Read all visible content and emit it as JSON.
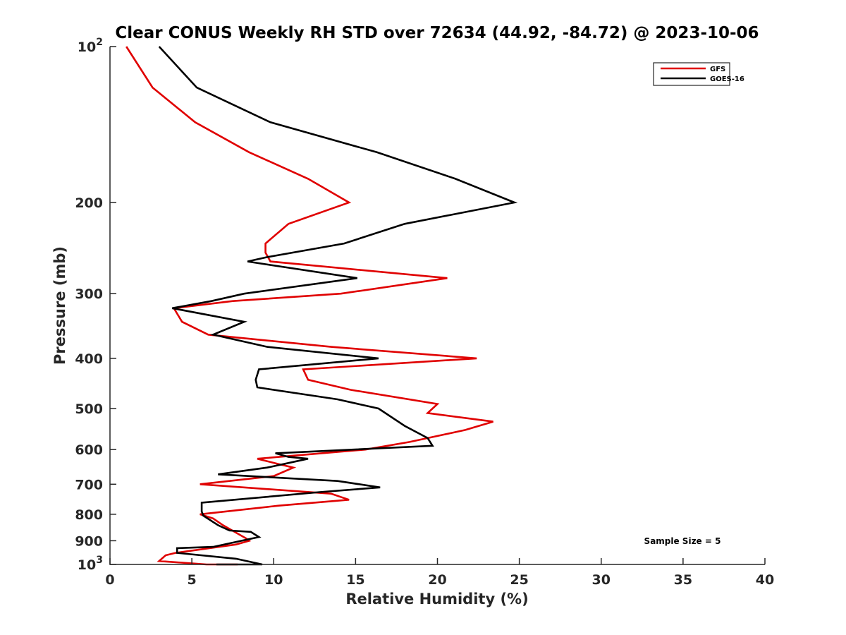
{
  "chart_data": {
    "type": "line",
    "title": "Clear CONUS Weekly RH STD over 72634 (44.92, -84.72) @ 2023-10-06",
    "xlabel": "Relative Humidity (%)",
    "ylabel": "Pressure (mb)",
    "xlim": [
      0,
      40
    ],
    "ylim": [
      100,
      1000
    ],
    "yscale": "log",
    "yreversed": true,
    "grid": false,
    "legend_position": "top-right",
    "x_ticks": [
      0,
      5,
      10,
      15,
      20,
      25,
      30,
      35,
      40
    ],
    "x_tick_labels": [
      "0",
      "5",
      "10",
      "15",
      "20",
      "25",
      "30",
      "35",
      "40"
    ],
    "y_ticks": [
      100,
      200,
      300,
      400,
      500,
      600,
      700,
      800,
      900,
      1000
    ],
    "y_tick_labels": [
      {
        "base": "10",
        "exp": "2"
      },
      {
        "base": "200",
        "exp": ""
      },
      {
        "base": "300",
        "exp": ""
      },
      {
        "base": "400",
        "exp": ""
      },
      {
        "base": "500",
        "exp": ""
      },
      {
        "base": "600",
        "exp": ""
      },
      {
        "base": "700",
        "exp": ""
      },
      {
        "base": "800",
        "exp": ""
      },
      {
        "base": "900",
        "exp": ""
      },
      {
        "base": "10",
        "exp": "3"
      }
    ],
    "annotation": "Sample Size = 5",
    "series": [
      {
        "name": "GFS",
        "color": "#e00000",
        "x": [
          1.0,
          2.6,
          5.2,
          8.5,
          12.1,
          14.6,
          10.9,
          9.5,
          9.5,
          9.8,
          20.6,
          14.1,
          7.5,
          3.9,
          4.4,
          6.0,
          13.5,
          22.4,
          11.8,
          12.1,
          14.7,
          20.0,
          19.4,
          23.4,
          21.7,
          18.3,
          15.6,
          9.0,
          10.3,
          11.2,
          10.0,
          5.5,
          13.5,
          14.6,
          10.3,
          5.5,
          6.3,
          6.9,
          8.3,
          8.5,
          7.7,
          4.0,
          3.4,
          3.0,
          5.9,
          7.8,
          7.3
        ],
        "pressure": [
          100,
          120,
          140,
          160,
          180,
          200,
          220,
          240,
          250,
          260,
          280,
          300,
          310,
          320,
          340,
          360,
          380,
          400,
          420,
          440,
          460,
          490,
          510,
          530,
          550,
          580,
          600,
          625,
          640,
          650,
          675,
          700,
          730,
          750,
          770,
          800,
          815,
          840,
          890,
          900,
          915,
          950,
          960,
          985,
          1000,
          1000,
          1000
        ]
      },
      {
        "name": "GOES-16",
        "color": "#000000",
        "x": [
          3.0,
          5.3,
          9.8,
          16.3,
          21.1,
          24.7,
          18.0,
          14.3,
          9.6,
          8.4,
          15.1,
          8.2,
          6.2,
          3.8,
          8.2,
          6.3,
          9.6,
          16.4,
          9.1,
          8.9,
          9.0,
          13.9,
          16.4,
          18.0,
          19.4,
          19.7,
          10.1,
          10.9,
          12.1,
          9.6,
          6.6,
          13.9,
          16.5,
          12.8,
          5.6,
          5.6,
          5.7,
          6.6,
          7.3,
          8.6,
          9.1,
          6.3,
          4.1,
          4.1,
          7.7,
          9.3,
          7.9,
          6.5
        ],
        "pressure": [
          100,
          120,
          140,
          160,
          180,
          200,
          220,
          240,
          255,
          260,
          280,
          300,
          310,
          320,
          340,
          360,
          380,
          400,
          420,
          440,
          455,
          480,
          500,
          540,
          570,
          590,
          610,
          620,
          625,
          650,
          670,
          690,
          710,
          725,
          760,
          790,
          805,
          840,
          860,
          865,
          885,
          925,
          930,
          950,
          975,
          1000,
          1000,
          1000
        ]
      }
    ]
  }
}
